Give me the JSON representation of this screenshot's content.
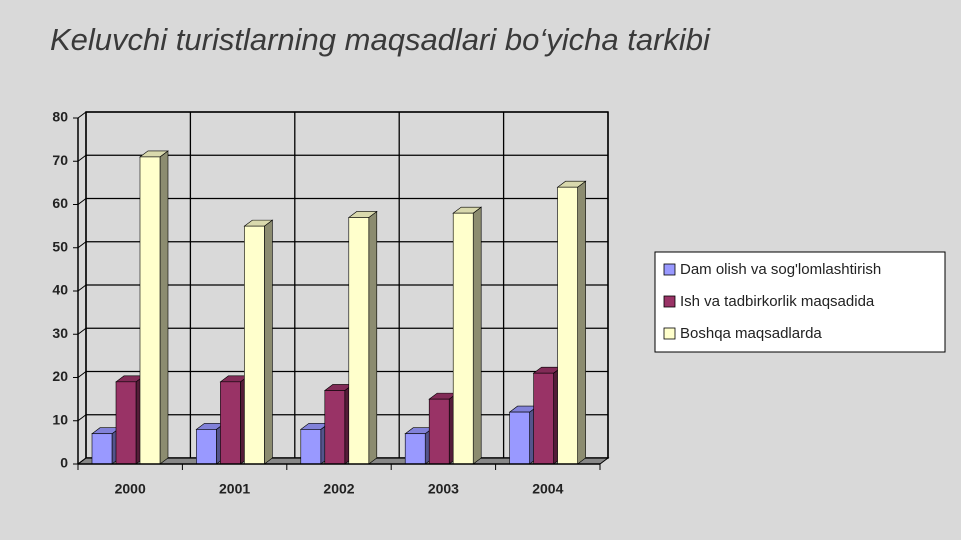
{
  "chart_data": {
    "type": "bar3d",
    "title": "Keluvchi turistlarning maqsadlari bo‘yicha tarkibi",
    "categories": [
      "2000",
      "2001",
      "2002",
      "2003",
      "2004"
    ],
    "series": [
      {
        "name": "Dam olish va sog'lomlashtirish",
        "color": "#9999ff",
        "values": [
          7,
          8,
          8,
          7,
          12
        ]
      },
      {
        "name": "Ish va tadbirkorlik maqsadida",
        "color": "#993366",
        "values": [
          19,
          19,
          17,
          15,
          21
        ]
      },
      {
        "name": "Boshqa maqsadlarda",
        "color": "#ffffcc",
        "values": [
          71,
          55,
          57,
          58,
          64
        ]
      }
    ],
    "ylim": [
      0,
      80
    ],
    "yticks": [
      0,
      10,
      20,
      30,
      40,
      50,
      60,
      70,
      80
    ],
    "grid": true
  }
}
